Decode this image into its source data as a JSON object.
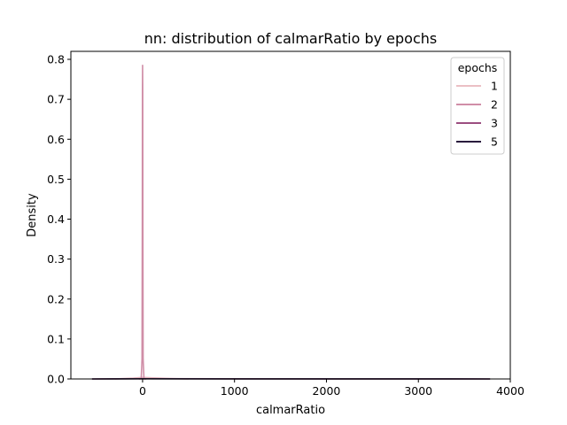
{
  "chart_data": {
    "type": "line",
    "title": "nn: distribution of calmarRatio by epochs",
    "xlabel": "calmarRatio",
    "ylabel": "Density",
    "xlim": [
      -780,
      4000
    ],
    "ylim": [
      0,
      0.82
    ],
    "xticks": [
      0,
      1000,
      2000,
      3000,
      4000
    ],
    "yticks": [
      0.0,
      0.1,
      0.2,
      0.3,
      0.4,
      0.5,
      0.6,
      0.7,
      0.8
    ],
    "xtick_labels": [
      "0",
      "1000",
      "2000",
      "3000",
      "4000"
    ],
    "ytick_labels": [
      "0.0",
      "0.1",
      "0.2",
      "0.3",
      "0.4",
      "0.5",
      "0.6",
      "0.7",
      "0.8"
    ],
    "legend": {
      "title": "epochs",
      "placement": "upper-right"
    },
    "series": [
      {
        "name": "1",
        "color": "#ebbfc4",
        "x": [
          -300,
          -100,
          0,
          100,
          300,
          500
        ],
        "y": [
          0.0,
          0.002,
          0.004,
          0.003,
          0.001,
          0.0
        ]
      },
      {
        "name": "2",
        "color": "#d08ea7",
        "x": [
          -40,
          -15,
          -6,
          -3,
          -1.5,
          0,
          1.5,
          3,
          6,
          15,
          40
        ],
        "y": [
          0.0,
          0.0,
          0.05,
          0.4,
          0.72,
          0.785,
          0.72,
          0.4,
          0.05,
          0.0,
          0.0
        ]
      },
      {
        "name": "3",
        "color": "#9c4e80",
        "x": [
          -550,
          0,
          1000,
          2000,
          3000,
          3780
        ],
        "y": [
          0.0,
          0.0008,
          0.0003,
          0.0001,
          0.0001,
          0.0
        ]
      },
      {
        "name": "5",
        "color": "#2a1b3d",
        "x": [
          -550,
          0,
          1000,
          2000,
          3000,
          3780
        ],
        "y": [
          0.0,
          0.0005,
          0.0002,
          0.0001,
          0.0001,
          0.0
        ]
      }
    ]
  }
}
